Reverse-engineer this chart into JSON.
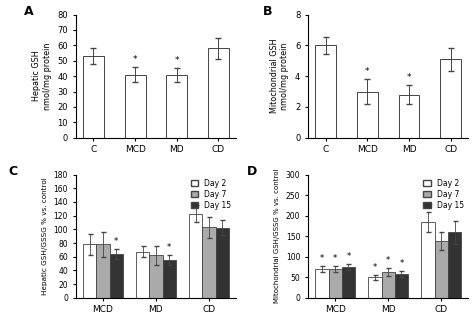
{
  "panel_A": {
    "label": "A",
    "categories": [
      "C",
      "MCD",
      "MD",
      "CD"
    ],
    "values": [
      53,
      41,
      40.5,
      58
    ],
    "errors": [
      5,
      5,
      4.5,
      7
    ],
    "starred": [
      false,
      true,
      true,
      false
    ],
    "ylabel": "Hepatic GSH\nnmol/mg protein",
    "ylim": [
      0,
      80
    ],
    "yticks": [
      0,
      10,
      20,
      30,
      40,
      50,
      60,
      70,
      80
    ]
  },
  "panel_B": {
    "label": "B",
    "categories": [
      "C",
      "MCD",
      "MD",
      "CD"
    ],
    "values": [
      6.0,
      3.0,
      2.8,
      5.1
    ],
    "errors": [
      0.55,
      0.8,
      0.6,
      0.75
    ],
    "starred": [
      false,
      true,
      true,
      false
    ],
    "ylabel": "Mitochondrial GSH\nnmol/mg protein",
    "ylim": [
      0,
      8
    ],
    "yticks": [
      0,
      2,
      4,
      6,
      8
    ]
  },
  "panel_C": {
    "label": "C",
    "categories": [
      "MCD",
      "MD",
      "CD"
    ],
    "day2_values": [
      78,
      67,
      123
    ],
    "day7_values": [
      78,
      62,
      103
    ],
    "day15_values": [
      64,
      55,
      102
    ],
    "day2_errors": [
      15,
      8,
      13
    ],
    "day7_errors": [
      18,
      14,
      15
    ],
    "day15_errors": [
      7,
      7,
      11
    ],
    "day2_starred": [
      false,
      false,
      false
    ],
    "day7_starred": [
      false,
      false,
      false
    ],
    "day15_starred": [
      true,
      true,
      false
    ],
    "ylabel": "Hepatic GSH/GSSG % vs. control",
    "ylim": [
      0,
      180
    ],
    "yticks": [
      0,
      20,
      40,
      60,
      80,
      100,
      120,
      140,
      160,
      180
    ]
  },
  "panel_D": {
    "label": "D",
    "categories": [
      "MCD",
      "MD",
      "CD"
    ],
    "day2_values": [
      70,
      50,
      185
    ],
    "day7_values": [
      70,
      63,
      138
    ],
    "day15_values": [
      75,
      58,
      160
    ],
    "day2_errors": [
      8,
      6,
      25
    ],
    "day7_errors": [
      8,
      10,
      22
    ],
    "day15_errors": [
      8,
      7,
      28
    ],
    "day2_starred": [
      true,
      true,
      false
    ],
    "day7_starred": [
      true,
      true,
      false
    ],
    "day15_starred": [
      true,
      true,
      false
    ],
    "ylabel": "Mitochondrial GSH/GSSG % vs. control",
    "ylim": [
      0,
      300
    ],
    "yticks": [
      0,
      50,
      100,
      150,
      200,
      250,
      300
    ]
  },
  "bar_colors": {
    "white": "#ffffff",
    "gray": "#aaaaaa",
    "black": "#333333"
  },
  "edge_color": "#444444",
  "background_color": "#ffffff",
  "legend_labels": [
    "Day 2",
    "Day 7",
    "Day 15"
  ]
}
